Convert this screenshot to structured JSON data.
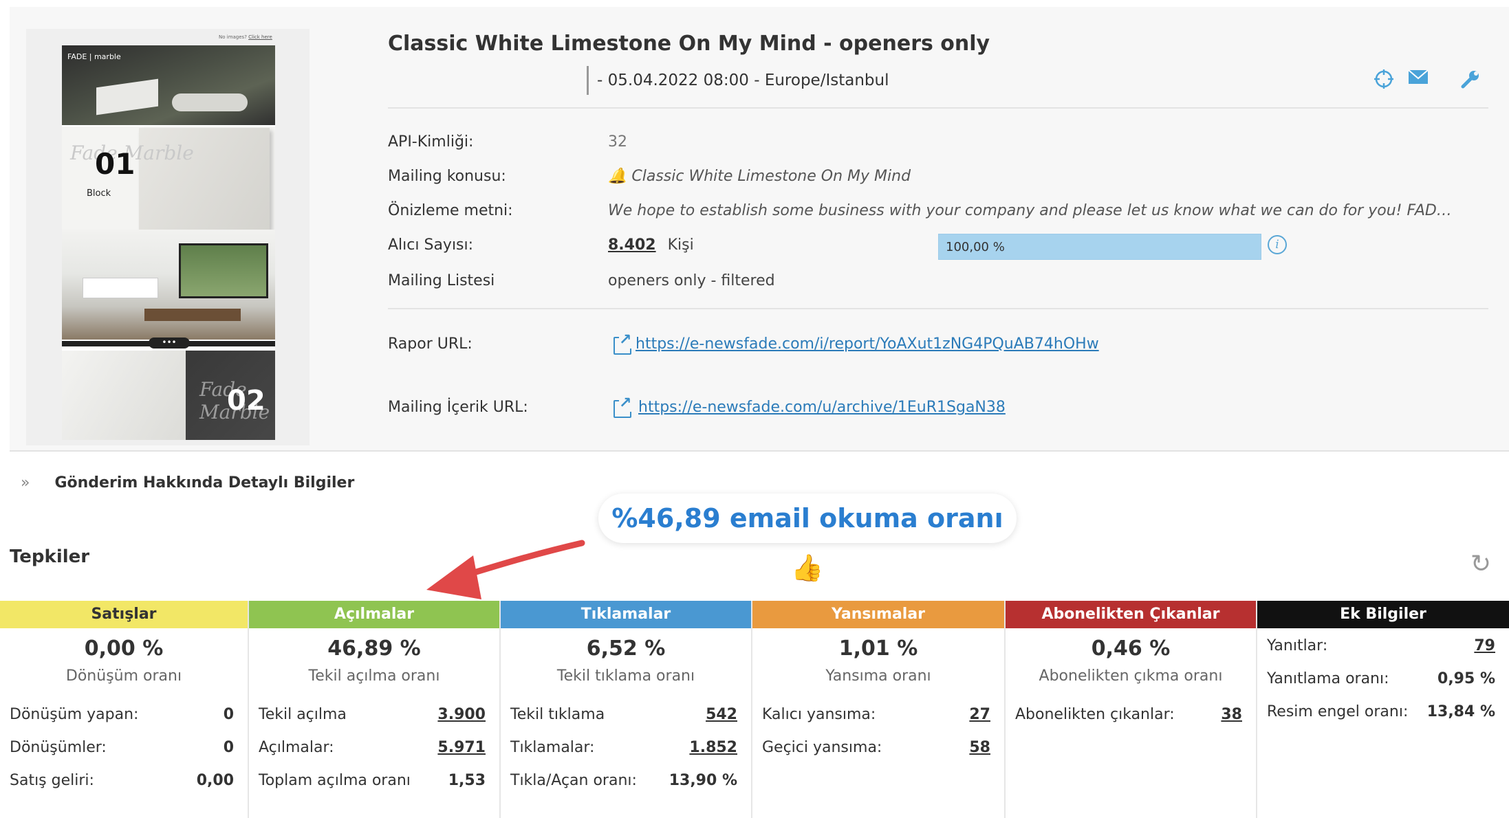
{
  "mail": {
    "title": "Classic White Limestone On My Mind - openers only",
    "date": "- 05.04.2022 08:00  - Europe/Istanbul",
    "icons": [
      "crosshair-icon",
      "envelope-icon",
      "wrench-icon"
    ]
  },
  "thumbnail": {
    "no_images_text": "No images?",
    "click_here": "Click here",
    "brand": "FADE | marble",
    "block_num": "01",
    "block_script": "Fade Marble",
    "block_label": "Block",
    "slab_num": "02",
    "slab_script": "Fade Marble",
    "dots": "•••"
  },
  "info": {
    "api_label": "API-Kimliği:",
    "api_value": "32",
    "subject_label": "Mailing konusu:",
    "subject_value": "🔔 Classic White Limestone On My Mind",
    "preview_label": "Önizleme metni:",
    "preview_value": "We hope to establish some business with your company and please let us know what we can do for you! FAD…",
    "recipients_label": "Alıcı Sayısı:",
    "recipients_count": "8.402",
    "recipients_unit": "Kişi",
    "recipients_percent_text": "100,00 %",
    "recipients_percent": 1.0,
    "list_label": "Mailing Listesi",
    "list_value": "openers only - filtered",
    "report_label": "Rapor URL:",
    "report_url": " https://e-newsfade.com/i/report/YoAXut1zNG4PQuAB74hOHw",
    "content_label": "Mailing İçerik URL:",
    "content_url": "https://e-newsfade.com/u/archive/1EuR1SgaN38"
  },
  "details": {
    "chevron": "»",
    "label": "Gönderim Hakkında Detaylı Bilgiler"
  },
  "toast": "%46,89 email okuma oranı 👍",
  "reactions": {
    "title": "Tepkiler",
    "refresh": "↻",
    "columns": [
      {
        "header": "Satışlar",
        "color": "#f2e766",
        "header_text_color": "#333333",
        "pct": "0,00 %",
        "sub": "Dönüşüm oranı",
        "rows": [
          {
            "label": "Dönüşüm yapan:",
            "value": "0"
          },
          {
            "label": "Dönüşümler:",
            "value": "0"
          },
          {
            "label": "Satış geliri:",
            "value": "0,00"
          }
        ]
      },
      {
        "header": "Açılmalar",
        "color": "#8fc451",
        "header_text_color": "#ffffff",
        "pct": "46,89 %",
        "sub": "Tekil açılma oranı",
        "rows": [
          {
            "label": "Tekil açılma",
            "value": "3.900"
          },
          {
            "label": "Açılmalar:",
            "value": "5.971"
          },
          {
            "label": "Toplam açılma oranı",
            "value": "1,53"
          }
        ]
      },
      {
        "header": "Tıklamalar",
        "color": "#4a98d2",
        "header_text_color": "#ffffff",
        "pct": "6,52 %",
        "sub": "Tekil tıklama oranı",
        "rows": [
          {
            "label": "Tekil tıklama",
            "value": "542"
          },
          {
            "label": "Tıklamalar:",
            "value": "1.852"
          },
          {
            "label": "Tıkla/Açan oranı:",
            "value": "13,90 %"
          }
        ]
      },
      {
        "header": "Yansımalar",
        "color": "#e99a3f",
        "header_text_color": "#ffffff",
        "pct": "1,01 %",
        "sub": "Yansıma oranı",
        "rows": [
          {
            "label": "Kalıcı yansıma:",
            "value": "27"
          },
          {
            "label": "Geçici yansıma:",
            "value": "58"
          }
        ]
      },
      {
        "header": "Abonelikten Çıkanlar",
        "color": "#b73030",
        "header_text_color": "#ffffff",
        "pct": "0,46 %",
        "sub": "Abonelikten çıkma oranı",
        "rows": [
          {
            "label": "Abonelikten çıkanlar:",
            "value": "38"
          }
        ]
      },
      {
        "header": "Ek Bilgiler",
        "color": "#111111",
        "header_text_color": "#ffffff",
        "pct": "",
        "sub": "",
        "rows": [
          {
            "label": "Yanıtlar:",
            "value": "79"
          },
          {
            "label": "Yanıtlama oranı:",
            "value": "0,95 %"
          },
          {
            "label": "Resim engel oranı:",
            "value": "13,84 %"
          }
        ]
      }
    ]
  }
}
